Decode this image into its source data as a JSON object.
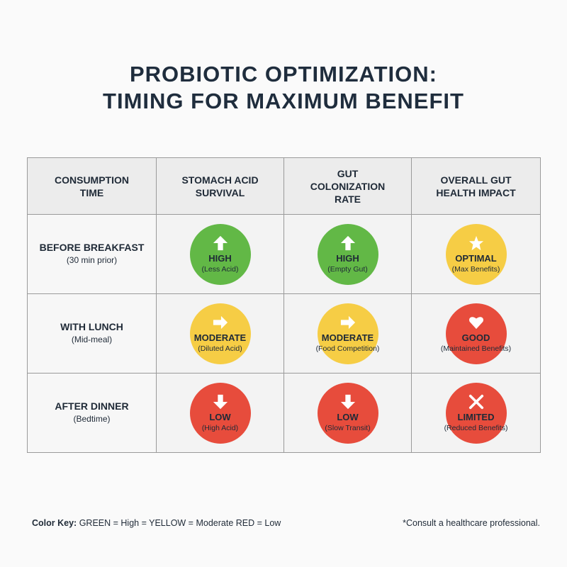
{
  "header": {
    "title": [
      "PROBIOTIC OPTIMIZATION:",
      "TIMING FOR MAXIMUM BENEFIT"
    ]
  },
  "table": {
    "columns": [
      "CONSUMPTION TIME",
      "STOMACH ACID SURVIVAL",
      "GUT COLONIZATION RATE",
      "OVERALL GUT HEALTH IMPACT"
    ],
    "rows": [
      {
        "time": "BEFORE BREAKFAST",
        "note": "(30 min prior)",
        "cells": [
          {
            "level": "HIGH",
            "detail": "(Less Acid)"
          },
          {
            "level": "HIGH",
            "detail": "(Empty Gut)"
          },
          {
            "level": "OPTIMAL",
            "detail": "(Max Benefits)"
          }
        ]
      },
      {
        "time": "WITH LUNCH",
        "note": "(Mid-meal)",
        "cells": [
          {
            "level": "MODERATE",
            "detail": "(Diluted Acid)"
          },
          {
            "level": "MODERATE",
            "detail": "(Food Competition)"
          },
          {
            "level": "GOOD",
            "detail": "(Maintained Benefits)"
          }
        ]
      },
      {
        "time": "AFTER DINNER",
        "note": "(Bedtime)",
        "cells": [
          {
            "level": "LOW",
            "detail": "(High Acid)"
          },
          {
            "level": "LOW",
            "detail": "(Slow Transit)"
          },
          {
            "level": "LIMITED",
            "detail": "(Reduced Benefits)"
          }
        ]
      }
    ]
  },
  "footer": {
    "key_label": "Color Key:",
    "key_text": "GREEN = High = YELLOW = Moderate RED = Low",
    "disclaimer": "*Consult a healthcare professional."
  }
}
